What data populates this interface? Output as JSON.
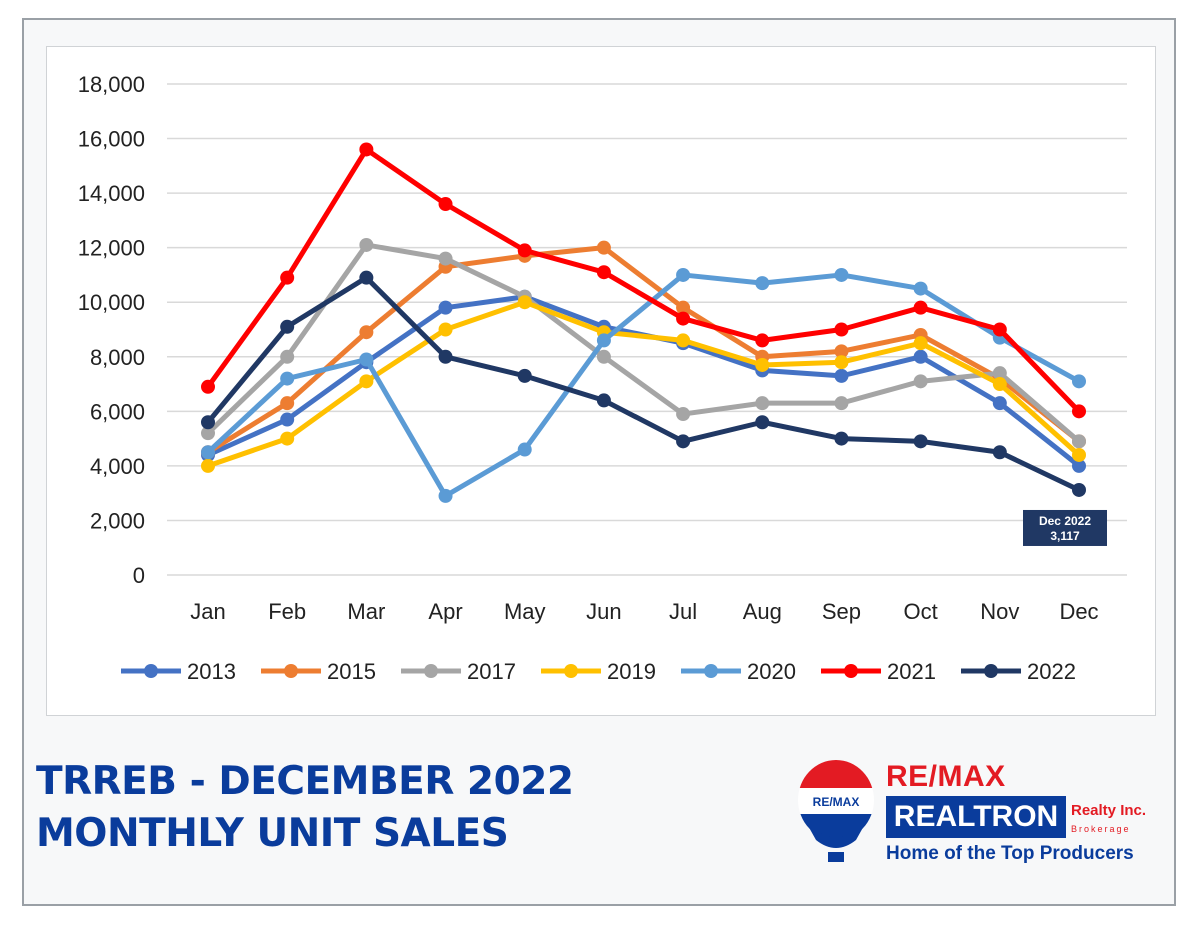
{
  "chart_data": {
    "type": "line",
    "categories": [
      "Jan",
      "Feb",
      "Mar",
      "Apr",
      "May",
      "Jun",
      "Jul",
      "Aug",
      "Sep",
      "Oct",
      "Nov",
      "Dec"
    ],
    "y_ticks": [
      "0",
      "2,000",
      "4,000",
      "6,000",
      "8,000",
      "10,000",
      "12,000",
      "14,000",
      "16,000",
      "18,000"
    ],
    "ylim": [
      0,
      18000
    ],
    "grid": true,
    "legend_position": "bottom",
    "series": [
      {
        "name": "2013",
        "color": "#4472c4",
        "values": [
          4400,
          5700,
          7800,
          9800,
          10200,
          9100,
          8500,
          7500,
          7300,
          8000,
          6300,
          4000
        ]
      },
      {
        "name": "2015",
        "color": "#ed7d31",
        "values": [
          4500,
          6300,
          8900,
          11300,
          11700,
          12000,
          9800,
          8000,
          8200,
          8800,
          7200,
          4900
        ]
      },
      {
        "name": "2017",
        "color": "#a5a5a5",
        "values": [
          5200,
          8000,
          12100,
          11600,
          10200,
          8000,
          5900,
          6300,
          6300,
          7100,
          7400,
          4900
        ]
      },
      {
        "name": "2019",
        "color": "#ffc000",
        "values": [
          4000,
          5000,
          7100,
          9000,
          10000,
          8900,
          8600,
          7700,
          7800,
          8500,
          7000,
          4400
        ]
      },
      {
        "name": "2020",
        "color": "#5b9bd5",
        "values": [
          4500,
          7200,
          7900,
          2900,
          4600,
          8600,
          11000,
          10700,
          11000,
          10500,
          8700,
          7100
        ]
      },
      {
        "name": "2021",
        "color": "#ff0000",
        "values": [
          6900,
          10900,
          15600,
          13600,
          11900,
          11100,
          9400,
          8600,
          9000,
          9800,
          9000,
          6000
        ]
      },
      {
        "name": "2022",
        "color": "#203864",
        "values": [
          5600,
          9100,
          10900,
          8000,
          7300,
          6400,
          4900,
          5600,
          5000,
          4900,
          4500,
          3117
        ]
      }
    ],
    "annotation": {
      "line1": "Dec 2022",
      "line2": "3,117",
      "series": "2022",
      "category": "Dec"
    }
  },
  "headline": {
    "line1": "TRREB - DECEMBER 2022",
    "line2": "MONTHLY UNIT SALES"
  },
  "brand": {
    "remax": "RE/MAX",
    "balloon_text": "RE/MAX",
    "realtron": "REALTRON",
    "realty": "Realty Inc.",
    "brokerage": "Brokerage",
    "tagline": "Home of the Top Producers"
  },
  "colors": {
    "headline": "#0a3c9c",
    "brand_red": "#e31b23",
    "brand_blue": "#0a3c9c"
  }
}
